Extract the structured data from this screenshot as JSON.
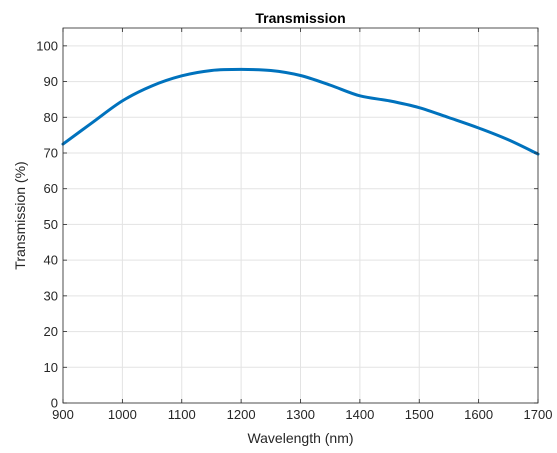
{
  "chart_data": {
    "type": "line",
    "title": "Transmission",
    "xlabel": "Wavelength (nm)",
    "ylabel": "Transmission (%)",
    "xlim": [
      900,
      1700
    ],
    "ylim": [
      0,
      105
    ],
    "xticks": [
      900,
      1000,
      1100,
      1200,
      1300,
      1400,
      1500,
      1600,
      1700
    ],
    "yticks": [
      0,
      10,
      20,
      30,
      40,
      50,
      60,
      70,
      80,
      90,
      100
    ],
    "grid": true,
    "series": [
      {
        "color": "#0072BD",
        "x": [
          900,
          950,
          1000,
          1050,
          1100,
          1150,
          1200,
          1250,
          1300,
          1350,
          1400,
          1450,
          1500,
          1550,
          1600,
          1650,
          1700
        ],
        "y": [
          72.5,
          78.6,
          84.6,
          88.8,
          91.6,
          93.1,
          93.4,
          93.1,
          91.7,
          89.0,
          86.0,
          84.6,
          82.7,
          79.9,
          77.0,
          73.7,
          69.7
        ]
      }
    ]
  }
}
